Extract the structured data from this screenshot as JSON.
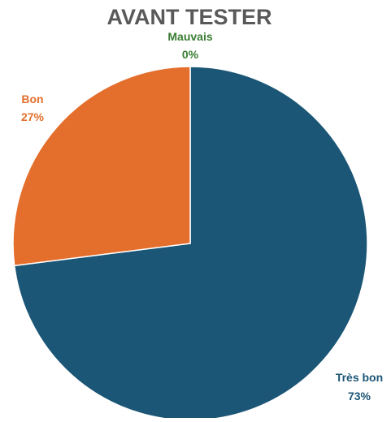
{
  "chart_data": {
    "type": "pie",
    "title": "AVANT TESTER",
    "slices": [
      {
        "label": "Très bon",
        "value": 73,
        "display": "73%",
        "color": "#1b5676"
      },
      {
        "label": "Bon",
        "value": 27,
        "display": "27%",
        "color": "#e46f2d"
      },
      {
        "label": "Mauvais",
        "value": 0,
        "display": "0%",
        "color": "#3a7d32"
      }
    ]
  }
}
